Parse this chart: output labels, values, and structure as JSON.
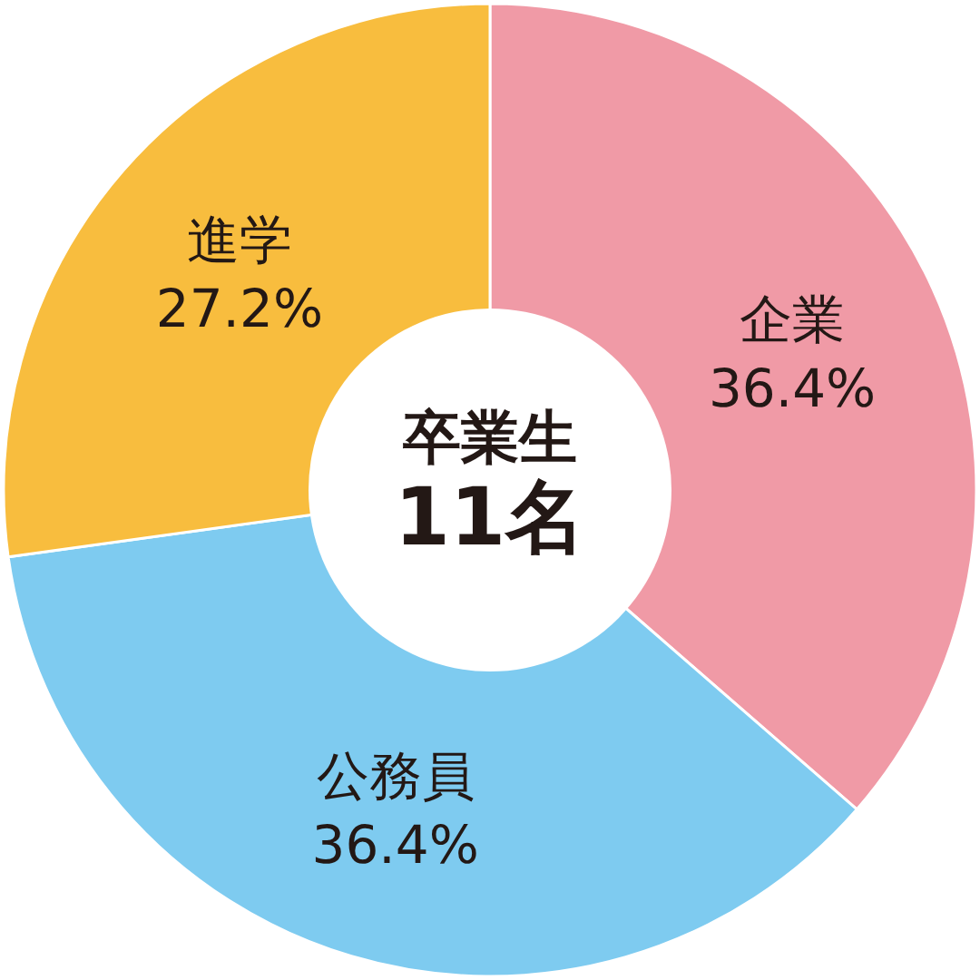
{
  "chart_data": {
    "type": "donut",
    "categories": [
      "企業",
      "公務員",
      "進学"
    ],
    "values": [
      36.4,
      36.4,
      27.2
    ],
    "value_labels": [
      "36.4%",
      "36.4%",
      "27.2%"
    ],
    "colors": [
      "#f09aa6",
      "#7ecbf0",
      "#f8bd3e"
    ],
    "annotations": [
      "卒業生",
      "11名"
    ]
  }
}
